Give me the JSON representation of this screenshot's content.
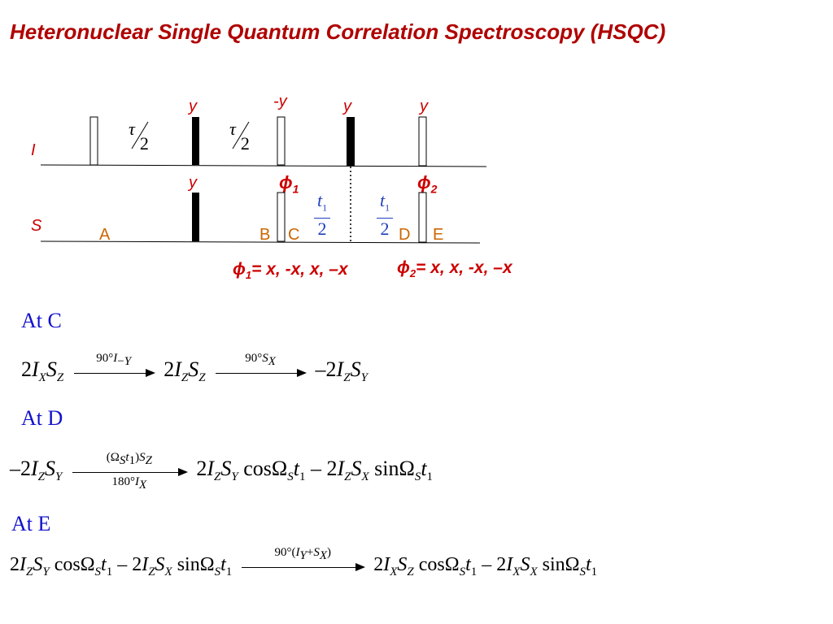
{
  "title": "Heteronuclear Single Quantum Correlation Spectroscopy (HSQC)",
  "channels": {
    "I": "I",
    "S": "S"
  },
  "phases": {
    "i_pulse2": "y",
    "i_pulse3": "-y",
    "i_pulse4": "y",
    "i_pulse5": "y",
    "s_pulse1": "y"
  },
  "phi": {
    "phi1_label": "ϕ",
    "phi1_sub": "1",
    "phi2_label": "ϕ",
    "phi2_sub": "2"
  },
  "delays": {
    "tau": "τ",
    "half": "2",
    "t1": "t",
    "t1_sub": "1",
    "t1_den": "2"
  },
  "points": {
    "A": "A",
    "B": "B",
    "C": "C",
    "D": "D",
    "E": "E"
  },
  "phase_cycle": {
    "phi1_prefix": "ϕ",
    "phi1_sub": "1",
    "phi1_values": "= x, -x, x, –x",
    "phi2_prefix": "ϕ",
    "phi2_sub": "2",
    "phi2_values": "= x, x, -x, –x"
  },
  "sections": [
    {
      "heading": "At  C"
    },
    {
      "heading": "At  D"
    },
    {
      "heading": "At  E"
    }
  ],
  "equations": {
    "c_arrow1_top": "90°",
    "c_arrow2_top": "90°",
    "d_arrow_top": "(Ω",
    "d_arrow_bottom": "180°",
    "e_arrow_top": "90°(",
    "cos": "cos",
    "sin": "sin"
  }
}
